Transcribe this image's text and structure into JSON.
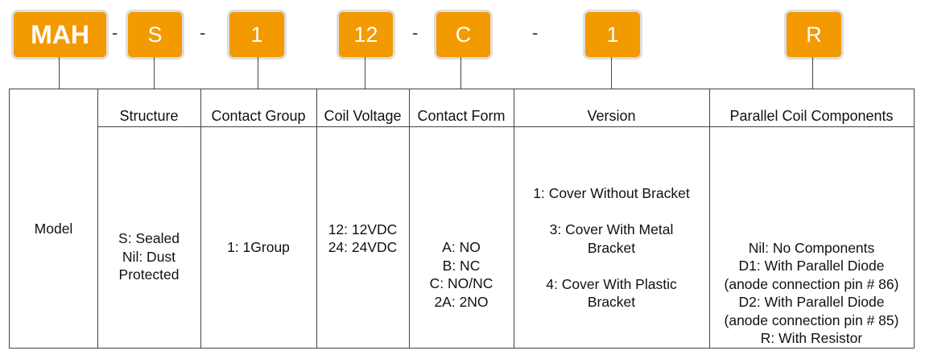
{
  "code_parts": [
    {
      "label": "MAH"
    },
    {
      "label": "S"
    },
    {
      "label": "1"
    },
    {
      "label": "12"
    },
    {
      "label": "C"
    },
    {
      "label": "1"
    },
    {
      "label": "R"
    }
  ],
  "separator": "-",
  "accent_color": "#f39a00",
  "columns": [
    {
      "header": "",
      "body": "Model"
    },
    {
      "header": "Structure",
      "body": "S: Sealed\nNil: Dust\nProtected"
    },
    {
      "header": "Contact Group",
      "body": "1: 1Group"
    },
    {
      "header": "Coil Voltage",
      "body": "12: 12VDC\n24: 24VDC"
    },
    {
      "header": "Contact Form",
      "body": "A: NO\nB: NC\nC: NO/NC\n2A: 2NO"
    },
    {
      "header": "Version",
      "body": "1: Cover Without Bracket\n\n3: Cover With Metal\nBracket\n\n4: Cover With Plastic\nBracket"
    },
    {
      "header": "Parallel Coil Components",
      "body": "Nil: No Components\nD1: With Parallel Diode\n(anode connection pin # 86)\nD2: With Parallel Diode\n(anode connection pin # 85)\nR: With Resistor"
    }
  ]
}
